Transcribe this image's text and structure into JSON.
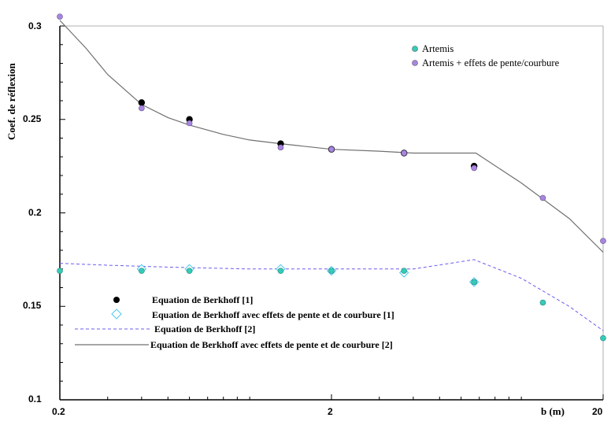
{
  "chart_data": {
    "type": "scatter",
    "xscale": "log",
    "xlim": [
      0.2,
      20
    ],
    "ylim": [
      0.1,
      0.3
    ],
    "xlabel": "b (m)",
    "ylabel": "Coef. de réflexion",
    "xtick_labels": [
      "0.2",
      "2",
      "20"
    ],
    "ytick_labels": [
      "0.3",
      "0.25",
      "0.2",
      "0.15",
      "0.1"
    ],
    "grid": false,
    "colors": {
      "berkhoff_dots": "#000000",
      "berkhoff_pc_diamond": "#4fc9f0",
      "berkhoff_line": "#6a5cf0",
      "berkhoff_pc_line": "#707070",
      "artemis": "#33ccb8",
      "artemis_pc": "#a886e0"
    },
    "series": [
      {
        "name": "Equation de Berkhoff [1]",
        "kind": "marker-dot",
        "x": [
          0.4,
          0.6,
          1.3,
          2.0,
          3.7,
          6.7
        ],
        "y": [
          0.259,
          0.25,
          0.237,
          0.234,
          0.232,
          0.225
        ]
      },
      {
        "name": "Equation de Berkhoff avec effets de pente et de courbure [1]",
        "kind": "marker-diamond",
        "x": [
          0.4,
          0.6,
          1.3,
          2.0,
          3.7,
          6.7
        ],
        "y": [
          0.17,
          0.17,
          0.17,
          0.169,
          0.168,
          0.163
        ]
      },
      {
        "name": "Equation de Berkhoff [2]",
        "kind": "line-dashed",
        "x": [
          0.2,
          0.3,
          0.5,
          1.0,
          2.0,
          4.0,
          6.7,
          10.0,
          15.0,
          20.0
        ],
        "y": [
          0.173,
          0.172,
          0.171,
          0.17,
          0.17,
          0.17,
          0.175,
          0.165,
          0.15,
          0.137
        ]
      },
      {
        "name": "Equation de Berkhoff avec effets de pente et de courbure [2]",
        "kind": "line-solid",
        "x": [
          0.2,
          0.25,
          0.3,
          0.4,
          0.5,
          0.6,
          0.8,
          1.0,
          1.3,
          2.0,
          3.0,
          4.0,
          6.0,
          6.8,
          10.0,
          15.0,
          20.0
        ],
        "y": [
          0.303,
          0.288,
          0.274,
          0.258,
          0.251,
          0.247,
          0.242,
          0.239,
          0.237,
          0.234,
          0.233,
          0.232,
          0.232,
          0.232,
          0.216,
          0.197,
          0.179
        ]
      },
      {
        "name": "Artemis",
        "kind": "marker-teal",
        "x": [
          0.2,
          0.4,
          0.6,
          1.3,
          2.0,
          3.7,
          6.7,
          12.0,
          20.0
        ],
        "y": [
          0.169,
          0.169,
          0.169,
          0.169,
          0.169,
          0.169,
          0.163,
          0.152,
          0.133
        ]
      },
      {
        "name": "Artemis + effets de pente/courbure",
        "kind": "marker-purple",
        "x": [
          0.2,
          0.4,
          0.6,
          1.3,
          2.0,
          3.7,
          6.7,
          12.0,
          20.0
        ],
        "y": [
          0.305,
          0.256,
          0.248,
          0.235,
          0.234,
          0.232,
          0.224,
          0.208,
          0.185
        ]
      }
    ],
    "legend_bottom": {
      "entries": [
        "Equation de Berkhoff [1]",
        "Equation de Berkhoff avec effets de pente et de courbure  [1]",
        "Equation de Berkhoff [2]",
        "Equation de Berkhoff avec effets de pente et de courbure [2]"
      ]
    },
    "legend_top": {
      "entries": [
        "Artemis",
        "Artemis + effets de pente/courbure"
      ]
    }
  }
}
